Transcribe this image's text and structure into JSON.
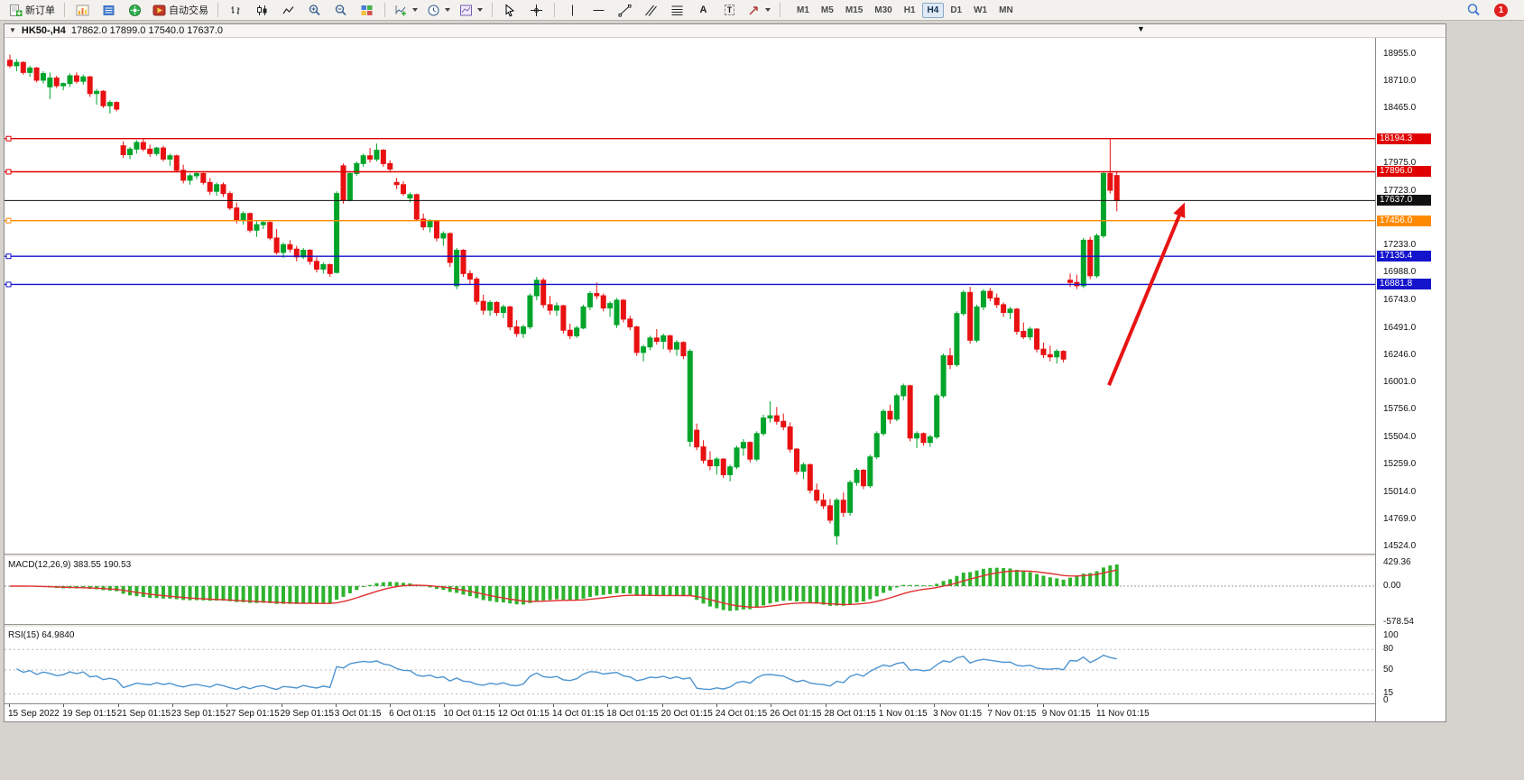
{
  "toolbar": {
    "new_order_label": "新订单",
    "autotrading_label": "自动交易",
    "timeframes": [
      "M1",
      "M5",
      "M15",
      "M30",
      "H1",
      "H4",
      "D1",
      "W1",
      "MN"
    ],
    "active_timeframe": "H4",
    "notification_count": "1",
    "glyphs": {
      "text_tool": "A",
      "label_tool": "T",
      "dropdown": "▼",
      "collapse": "▼"
    }
  },
  "chart": {
    "title": "HK50-,H4",
    "ohlc_line": "17862.0 17899.0 17540.0 17637.0"
  },
  "price_axis": {
    "ticks": [
      {
        "label": "18955.0",
        "price": 18955
      },
      {
        "label": "18710.0",
        "price": 18710
      },
      {
        "label": "18465.0",
        "price": 18465
      },
      {
        "label": "17975.0",
        "price": 17975
      },
      {
        "label": "17723.0",
        "price": 17723
      },
      {
        "label": "17233.0",
        "price": 17233
      },
      {
        "label": "16988.0",
        "price": 16988
      },
      {
        "label": "16743.0",
        "price": 16743
      },
      {
        "label": "16491.0",
        "price": 16491
      },
      {
        "label": "16246.0",
        "price": 16246
      },
      {
        "label": "16001.0",
        "price": 16001
      },
      {
        "label": "15756.0",
        "price": 15756
      },
      {
        "label": "15504.0",
        "price": 15504
      },
      {
        "label": "15259.0",
        "price": 15259
      },
      {
        "label": "15014.0",
        "price": 15014
      },
      {
        "label": "14769.0",
        "price": 14769
      },
      {
        "label": "14524.0",
        "price": 14524
      }
    ]
  },
  "time_axis": {
    "labels": [
      "15 Sep 2022",
      "19 Sep 01:15",
      "21 Sep 01:15",
      "23 Sep 01:15",
      "27 Sep 01:15",
      "29 Sep 01:15",
      "3 Oct 01:15",
      "6 Oct 01:15",
      "10 Oct 01:15",
      "12 Oct 01:15",
      "14 Oct 01:15",
      "18 Oct 01:15",
      "20 Oct 01:15",
      "24 Oct 01:15",
      "26 Oct 01:15",
      "28 Oct 01:15",
      "1 Nov 01:15",
      "3 Nov 01:15",
      "7 Nov 01:15",
      "9 Nov 01:15",
      "11 Nov 01:15"
    ]
  },
  "indicators": {
    "macd": {
      "label_full": "MACD(12,26,9) 383.55 190.53",
      "name": "MACD",
      "fast": 12,
      "slow": 26,
      "signal": 9,
      "value_main": 383.55,
      "value_signal": 190.53,
      "scale": [
        "429.36",
        "0.00",
        "-578.54"
      ],
      "histogram_color": "#2db32d",
      "signal_color": "#e03030"
    },
    "rsi": {
      "label_full": "RSI(15) 64.9840",
      "name": "RSI",
      "period": 15,
      "value": 64.984,
      "scale": [
        "100",
        "80",
        "50",
        "15",
        "0"
      ],
      "levels": [
        80,
        50,
        15
      ],
      "line_color": "#4d94d0"
    }
  },
  "chart_data": {
    "type": "candlestick",
    "symbol": "HK50-",
    "timeframe": "H4",
    "current_bar": {
      "open": 17862.0,
      "high": 17899.0,
      "low": 17540.0,
      "close": 17637.0
    },
    "price_range_visible": [
      14459,
      19101
    ],
    "up_color": "#00a42a",
    "down_color": "#e81010",
    "levels": [
      {
        "label": "18194.3",
        "price": 18194.3,
        "color": "#e00000",
        "style": "line"
      },
      {
        "label": "17896.0",
        "price": 17896.0,
        "color": "#e00000",
        "style": "line"
      },
      {
        "label": "17637.0",
        "price": 17637.0,
        "color": "#111111",
        "style": "bid"
      },
      {
        "label": "17456.0",
        "price": 17456.0,
        "color": "#ff8a00",
        "style": "line"
      },
      {
        "label": "17135.4",
        "price": 17135.4,
        "color": "#1414cc",
        "style": "line"
      },
      {
        "label": "16881.8",
        "price": 16881.8,
        "color": "#1414cc",
        "style": "line"
      }
    ],
    "arrow": {
      "color": "#e81414",
      "from_price": 15975,
      "to_price": 17620
    },
    "candles_ohlc": [
      [
        18900,
        18950,
        18830,
        18850
      ],
      [
        18850,
        18910,
        18800,
        18880
      ],
      [
        18880,
        18890,
        18770,
        18790
      ],
      [
        18790,
        18850,
        18750,
        18830
      ],
      [
        18830,
        18840,
        18700,
        18720
      ],
      [
        18720,
        18800,
        18690,
        18780
      ],
      [
        18660,
        18790,
        18550,
        18740
      ],
      [
        18740,
        18760,
        18650,
        18670
      ],
      [
        18670,
        18700,
        18630,
        18690
      ],
      [
        18690,
        18780,
        18660,
        18760
      ],
      [
        18760,
        18790,
        18690,
        18710
      ],
      [
        18710,
        18770,
        18680,
        18750
      ],
      [
        18750,
        18760,
        18570,
        18600
      ],
      [
        18600,
        18640,
        18500,
        18620
      ],
      [
        18620,
        18630,
        18470,
        18490
      ],
      [
        18490,
        18540,
        18420,
        18520
      ],
      [
        18520,
        18530,
        18440,
        18460
      ],
      [
        18130,
        18170,
        18020,
        18050
      ],
      [
        18050,
        18120,
        18010,
        18100
      ],
      [
        18100,
        18180,
        18060,
        18160
      ],
      [
        18160,
        18194,
        18080,
        18100
      ],
      [
        18100,
        18140,
        18030,
        18060
      ],
      [
        18060,
        18120,
        18040,
        18110
      ],
      [
        18110,
        18130,
        17990,
        18010
      ],
      [
        18010,
        18060,
        17950,
        18040
      ],
      [
        18040,
        18050,
        17890,
        17910
      ],
      [
        17910,
        17960,
        17790,
        17820
      ],
      [
        17820,
        17880,
        17780,
        17860
      ],
      [
        17860,
        17900,
        17830,
        17880
      ],
      [
        17880,
        17890,
        17780,
        17800
      ],
      [
        17800,
        17840,
        17690,
        17720
      ],
      [
        17720,
        17800,
        17680,
        17780
      ],
      [
        17780,
        17800,
        17670,
        17700
      ],
      [
        17700,
        17720,
        17550,
        17570
      ],
      [
        17570,
        17620,
        17430,
        17460
      ],
      [
        17460,
        17540,
        17420,
        17520
      ],
      [
        17520,
        17530,
        17350,
        17370
      ],
      [
        17370,
        17450,
        17310,
        17420
      ],
      [
        17420,
        17460,
        17380,
        17440
      ],
      [
        17440,
        17450,
        17280,
        17300
      ],
      [
        17300,
        17380,
        17150,
        17170
      ],
      [
        17170,
        17260,
        17120,
        17240
      ],
      [
        17240,
        17280,
        17170,
        17200
      ],
      [
        17200,
        17230,
        17090,
        17130
      ],
      [
        17130,
        17210,
        17110,
        17190
      ],
      [
        17190,
        17200,
        17060,
        17090
      ],
      [
        17090,
        17130,
        16990,
        17020
      ],
      [
        17020,
        17080,
        16980,
        17060
      ],
      [
        17060,
        17070,
        16950,
        16980
      ],
      [
        16990,
        17720,
        16980,
        17700
      ],
      [
        17950,
        17970,
        17610,
        17640
      ],
      [
        17640,
        17900,
        17630,
        17880
      ],
      [
        17880,
        17990,
        17860,
        17970
      ],
      [
        17970,
        18060,
        17940,
        18040
      ],
      [
        18040,
        18110,
        17980,
        18010
      ],
      [
        18010,
        18150,
        17990,
        18090
      ],
      [
        18090,
        18100,
        17940,
        17970
      ],
      [
        17970,
        18000,
        17890,
        17920
      ],
      [
        17800,
        17840,
        17740,
        17780
      ],
      [
        17780,
        17810,
        17680,
        17700
      ],
      [
        17660,
        17710,
        17620,
        17690
      ],
      [
        17690,
        17700,
        17450,
        17470
      ],
      [
        17470,
        17520,
        17370,
        17400
      ],
      [
        17400,
        17470,
        17350,
        17450
      ],
      [
        17450,
        17460,
        17270,
        17300
      ],
      [
        17300,
        17360,
        17230,
        17340
      ],
      [
        17340,
        17350,
        17040,
        17080
      ],
      [
        16870,
        17210,
        16840,
        17190
      ],
      [
        17190,
        17200,
        16950,
        16980
      ],
      [
        16980,
        17010,
        16880,
        16930
      ],
      [
        16930,
        16950,
        16700,
        16730
      ],
      [
        16730,
        16790,
        16610,
        16650
      ],
      [
        16650,
        16740,
        16600,
        16720
      ],
      [
        16720,
        16730,
        16600,
        16630
      ],
      [
        16630,
        16700,
        16580,
        16680
      ],
      [
        16680,
        16690,
        16470,
        16500
      ],
      [
        16500,
        16560,
        16410,
        16440
      ],
      [
        16440,
        16520,
        16400,
        16500
      ],
      [
        16500,
        16800,
        16480,
        16780
      ],
      [
        16780,
        16950,
        16740,
        16920
      ],
      [
        16920,
        16940,
        16670,
        16700
      ],
      [
        16700,
        16780,
        16610,
        16650
      ],
      [
        16650,
        16720,
        16600,
        16690
      ],
      [
        16690,
        16700,
        16440,
        16470
      ],
      [
        16470,
        16530,
        16390,
        16420
      ],
      [
        16420,
        16510,
        16400,
        16490
      ],
      [
        16490,
        16700,
        16480,
        16680
      ],
      [
        16680,
        16820,
        16650,
        16800
      ],
      [
        16800,
        16900,
        16750,
        16780
      ],
      [
        16780,
        16800,
        16640,
        16670
      ],
      [
        16670,
        16730,
        16590,
        16710
      ],
      [
        16520,
        16760,
        16490,
        16740
      ],
      [
        16740,
        16750,
        16540,
        16570
      ],
      [
        16570,
        16600,
        16470,
        16500
      ],
      [
        16500,
        16510,
        16240,
        16270
      ],
      [
        16270,
        16340,
        16190,
        16320
      ],
      [
        16320,
        16420,
        16290,
        16400
      ],
      [
        16400,
        16480,
        16340,
        16370
      ],
      [
        16370,
        16440,
        16300,
        16420
      ],
      [
        16420,
        16430,
        16270,
        16300
      ],
      [
        16300,
        16380,
        16240,
        16360
      ],
      [
        16360,
        16370,
        16210,
        16240
      ],
      [
        15470,
        16300,
        15420,
        16280
      ],
      [
        15570,
        15630,
        15390,
        15420
      ],
      [
        15420,
        15480,
        15270,
        15300
      ],
      [
        15300,
        15380,
        15210,
        15250
      ],
      [
        15250,
        15330,
        15170,
        15310
      ],
      [
        15310,
        15320,
        15140,
        15170
      ],
      [
        15170,
        15260,
        15110,
        15240
      ],
      [
        15240,
        15430,
        15220,
        15410
      ],
      [
        15410,
        15490,
        15340,
        15460
      ],
      [
        15460,
        15470,
        15280,
        15310
      ],
      [
        15310,
        15560,
        15290,
        15540
      ],
      [
        15540,
        15710,
        15520,
        15680
      ],
      [
        15680,
        15830,
        15640,
        15700
      ],
      [
        15700,
        15780,
        15620,
        15650
      ],
      [
        15650,
        15720,
        15570,
        15600
      ],
      [
        15600,
        15640,
        15370,
        15400
      ],
      [
        15400,
        15410,
        15170,
        15200
      ],
      [
        15200,
        15280,
        15130,
        15260
      ],
      [
        15260,
        15270,
        15000,
        15030
      ],
      [
        15030,
        15090,
        14910,
        14940
      ],
      [
        14940,
        15000,
        14860,
        14890
      ],
      [
        14890,
        14950,
        14730,
        14760
      ],
      [
        14620,
        14960,
        14540,
        14940
      ],
      [
        14940,
        15010,
        14790,
        14830
      ],
      [
        14830,
        15120,
        14800,
        15100
      ],
      [
        15100,
        15230,
        15070,
        15210
      ],
      [
        15210,
        15220,
        15040,
        15070
      ],
      [
        15070,
        15350,
        15050,
        15330
      ],
      [
        15330,
        15560,
        15310,
        15540
      ],
      [
        15540,
        15760,
        15520,
        15740
      ],
      [
        15740,
        15800,
        15630,
        15670
      ],
      [
        15670,
        15900,
        15650,
        15880
      ],
      [
        15880,
        15990,
        15840,
        15970
      ],
      [
        15970,
        15980,
        15470,
        15500
      ],
      [
        15500,
        15560,
        15410,
        15540
      ],
      [
        15540,
        15550,
        15430,
        15460
      ],
      [
        15460,
        15530,
        15420,
        15510
      ],
      [
        15510,
        15900,
        15490,
        15880
      ],
      [
        15880,
        16260,
        15860,
        16240
      ],
      [
        16240,
        16310,
        16120,
        16160
      ],
      [
        16160,
        16640,
        16140,
        16620
      ],
      [
        16620,
        16830,
        16600,
        16810
      ],
      [
        16810,
        16860,
        16350,
        16380
      ],
      [
        16380,
        16700,
        16360,
        16680
      ],
      [
        16680,
        16840,
        16650,
        16820
      ],
      [
        16820,
        16850,
        16730,
        16760
      ],
      [
        16760,
        16800,
        16670,
        16700
      ],
      [
        16700,
        16720,
        16590,
        16630
      ],
      [
        16630,
        16680,
        16570,
        16660
      ],
      [
        16660,
        16670,
        16430,
        16460
      ],
      [
        16460,
        16540,
        16390,
        16410
      ],
      [
        16410,
        16500,
        16380,
        16480
      ],
      [
        16480,
        16490,
        16270,
        16300
      ],
      [
        16300,
        16360,
        16220,
        16250
      ],
      [
        16250,
        16330,
        16190,
        16230
      ],
      [
        16230,
        16300,
        16170,
        16280
      ],
      [
        16280,
        16290,
        16180,
        16210
      ],
      [
        16920,
        16980,
        16860,
        16900
      ],
      [
        16900,
        16970,
        16840,
        16870
      ],
      [
        16870,
        17300,
        16850,
        17280
      ],
      [
        17280,
        17310,
        16930,
        16960
      ],
      [
        16960,
        17340,
        16940,
        17320
      ],
      [
        17320,
        17900,
        17300,
        17880
      ],
      [
        17880,
        18194,
        17700,
        17730
      ],
      [
        17862,
        17899,
        17540,
        17637
      ]
    ]
  }
}
